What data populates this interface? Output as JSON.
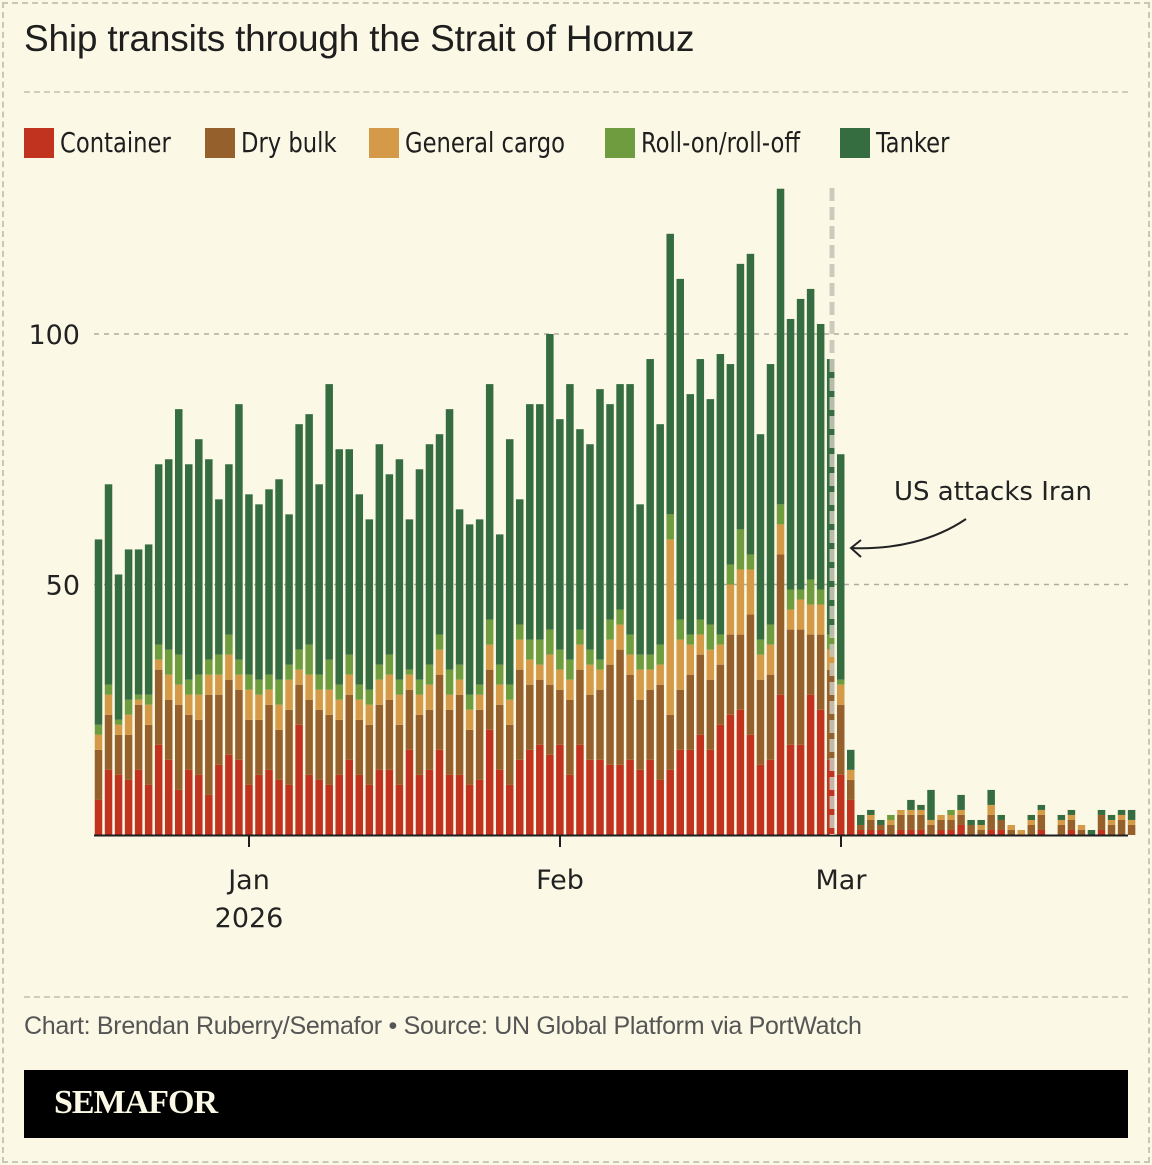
{
  "title": "Ship transits through the Strait of Hormuz",
  "legend": [
    {
      "label": "Container",
      "color": "#c1321f"
    },
    {
      "label": "Dry bulk",
      "color": "#95602b"
    },
    {
      "label": "General cargo",
      "color": "#d59a48"
    },
    {
      "label": "Roll-on/roll-off",
      "color": "#6e9c3e"
    },
    {
      "label": "Tanker",
      "color": "#356d41"
    }
  ],
  "source": "Chart: Brendan Ruberry/Semafor • Source: UN Global Platform via PortWatch",
  "brand": "SEMAFOR",
  "annotation": "US attacks Iran",
  "chart_data": {
    "type": "bar",
    "stacked": true,
    "title": "Ship transits through the Strait of Hormuz",
    "xlabel": "",
    "ylabel": "",
    "ylim": [
      0,
      130
    ],
    "yticks": [
      50,
      100
    ],
    "grid": "horizontal dashed",
    "legend_position": "top",
    "x_start": "2025-12-16",
    "x_end": "2026-03-29",
    "xticks": [
      {
        "label": "Jan\n2026",
        "date": "2026-01-01"
      },
      {
        "label": "Feb",
        "date": "2026-02-01"
      },
      {
        "label": "Mar",
        "date": "2026-03-01"
      }
    ],
    "annotation": {
      "text": "US attacks Iran",
      "date": "2026-02-28"
    },
    "totals": [
      59,
      70,
      52,
      57,
      57,
      58,
      74,
      75,
      85,
      74,
      79,
      75,
      67,
      74,
      86,
      68,
      66,
      69,
      71,
      64,
      82,
      84,
      70,
      90,
      77,
      77,
      68,
      63,
      78,
      72,
      75,
      63,
      73,
      78,
      80,
      85,
      65,
      62,
      63,
      90,
      60,
      79,
      67,
      86,
      86,
      100,
      83,
      90,
      81,
      78,
      89,
      86,
      90,
      90,
      66,
      95,
      82,
      120,
      111,
      88,
      95,
      87,
      96,
      94,
      114,
      116,
      80,
      94,
      129,
      103,
      107,
      109,
      102,
      95,
      76,
      17,
      4,
      5,
      3,
      4,
      5,
      7,
      6,
      9,
      4,
      5,
      8,
      3,
      3,
      9,
      4,
      2,
      1,
      4,
      6,
      0,
      4,
      5,
      2,
      1,
      5,
      4,
      5,
      5
    ],
    "series": [
      {
        "name": "Container",
        "values": [
          7,
          13,
          12,
          11,
          13,
          10,
          18,
          15,
          9,
          13,
          12,
          8,
          14,
          16,
          15,
          10,
          12,
          13,
          11,
          10,
          22,
          12,
          11,
          10,
          12,
          15,
          12,
          10,
          13,
          13,
          10,
          17,
          12,
          13,
          17,
          12,
          12,
          10,
          11,
          21,
          13,
          10,
          15,
          17,
          18,
          16,
          18,
          12,
          18,
          15,
          15,
          14,
          14,
          15,
          13,
          15,
          11,
          13,
          17,
          17,
          20,
          17,
          22,
          24,
          25,
          20,
          14,
          15,
          28,
          18,
          18,
          28,
          25,
          15,
          12,
          7,
          1,
          1,
          1,
          0,
          1,
          1,
          1,
          0,
          1,
          1,
          2,
          0,
          0,
          1,
          1,
          0,
          0,
          0,
          1,
          0,
          0,
          1,
          0,
          0,
          1,
          0,
          0,
          0
        ]
      },
      {
        "name": "Dry bulk",
        "values": [
          10,
          11,
          8,
          9,
          13,
          12,
          15,
          12,
          17,
          11,
          11,
          20,
          14,
          15,
          14,
          13,
          11,
          13,
          10,
          15,
          8,
          15,
          14,
          14,
          11,
          13,
          11,
          12,
          13,
          14,
          12,
          12,
          12,
          12,
          15,
          13,
          16,
          11,
          14,
          12,
          13,
          12,
          18,
          13,
          13,
          14,
          11,
          15,
          15,
          13,
          14,
          20,
          23,
          17,
          14,
          14,
          19,
          11,
          12,
          15,
          16,
          14,
          12,
          16,
          15,
          24,
          17,
          17,
          28,
          23,
          23,
          12,
          15,
          18,
          14,
          4,
          1,
          2,
          1,
          2,
          3,
          3,
          3,
          2,
          2,
          2,
          2,
          2,
          1,
          3,
          2,
          1,
          0,
          2,
          3,
          0,
          2,
          2,
          1,
          0,
          3,
          2,
          3,
          2
        ]
      },
      {
        "name": "General cargo",
        "values": [
          3,
          4,
          2,
          4,
          1,
          4,
          2,
          5,
          4,
          4,
          5,
          4,
          4,
          5,
          3,
          6,
          5,
          3,
          5,
          6,
          3,
          5,
          4,
          5,
          4,
          4,
          4,
          4,
          5,
          5,
          6,
          3,
          4,
          5,
          5,
          3,
          3,
          4,
          3,
          5,
          4,
          5,
          6,
          5,
          3,
          6,
          4,
          4,
          5,
          6,
          4,
          5,
          5,
          4,
          6,
          4,
          4,
          35,
          10,
          6,
          4,
          6,
          4,
          10,
          13,
          9,
          5,
          6,
          6,
          4,
          6,
          6,
          6,
          4,
          4,
          2,
          0,
          1,
          0,
          1,
          1,
          1,
          1,
          1,
          1,
          1,
          1,
          0,
          1,
          2,
          0,
          1,
          1,
          1,
          1,
          0,
          1,
          1,
          1,
          0,
          0,
          1,
          1,
          1
        ]
      },
      {
        "name": "Roll-on/roll-off",
        "values": [
          2,
          2,
          1,
          3,
          1,
          2,
          3,
          5,
          6,
          3,
          4,
          3,
          4,
          4,
          3,
          3,
          3,
          3,
          5,
          3,
          4,
          6,
          3,
          6,
          3,
          4,
          3,
          3,
          3,
          4,
          3,
          1,
          3,
          4,
          3,
          5,
          3,
          3,
          2,
          5,
          4,
          3,
          3,
          4,
          5,
          5,
          4,
          4,
          3,
          3,
          2,
          4,
          3,
          4,
          3,
          3,
          4,
          5,
          4,
          2,
          3,
          5,
          2,
          4,
          8,
          3,
          3,
          4,
          4,
          4,
          2,
          5,
          3,
          3,
          1,
          0,
          0,
          0,
          0,
          1,
          0,
          0,
          0,
          0,
          0,
          1,
          0,
          0,
          0,
          0,
          0,
          0,
          0,
          0,
          0,
          0,
          0,
          0,
          0,
          0,
          0,
          0,
          0,
          0
        ]
      },
      {
        "name": "Tanker",
        "values": [
          37,
          40,
          29,
          30,
          29,
          30,
          36,
          38,
          49,
          43,
          47,
          40,
          31,
          34,
          51,
          36,
          35,
          37,
          40,
          30,
          45,
          46,
          38,
          55,
          47,
          41,
          38,
          34,
          44,
          36,
          44,
          30,
          42,
          44,
          40,
          52,
          31,
          34,
          33,
          47,
          26,
          49,
          25,
          47,
          47,
          59,
          46,
          55,
          40,
          41,
          54,
          43,
          45,
          50,
          30,
          59,
          44,
          56,
          68,
          48,
          52,
          45,
          56,
          40,
          53,
          60,
          41,
          52,
          63,
          54,
          58,
          58,
          53,
          55,
          45,
          4,
          2,
          1,
          1,
          0,
          0,
          2,
          1,
          6,
          0,
          0,
          3,
          1,
          1,
          3,
          1,
          0,
          0,
          1,
          1,
          0,
          1,
          1,
          0,
          1,
          1,
          1,
          1,
          2
        ]
      }
    ]
  }
}
